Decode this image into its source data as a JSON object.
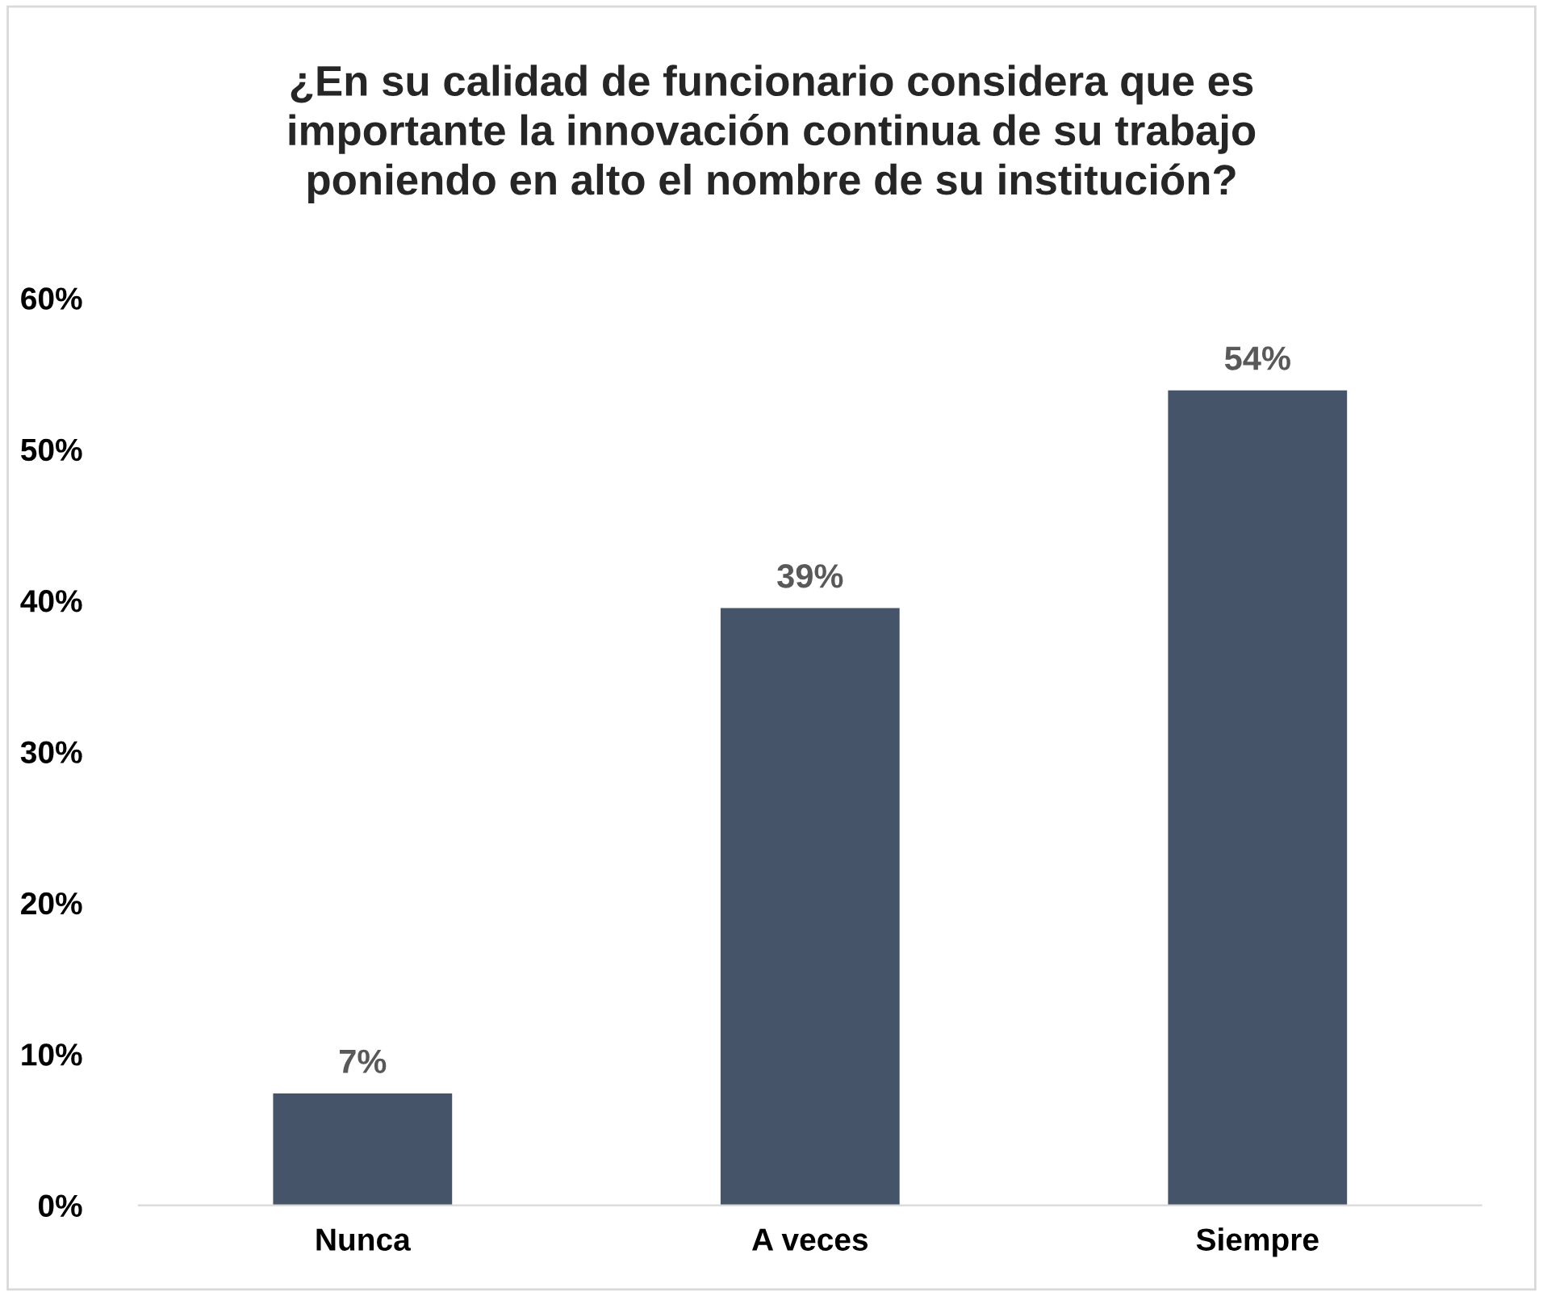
{
  "chart_data": {
    "type": "bar",
    "title": "¿En su calidad de funcionario considera que es\nimportante la innovación continua de su trabajo\nponiendo en alto el nombre de su institución?",
    "categories": [
      "Nunca",
      "A veces",
      "Siempre"
    ],
    "values": [
      7.4,
      39.5,
      53.9
    ],
    "value_labels": [
      "7%",
      "39%",
      "54%"
    ],
    "color": "#465469",
    "ylim": [
      0,
      60
    ],
    "yticks": [
      {
        "value": 0,
        "label": "0%"
      },
      {
        "value": 10,
        "label": "10%"
      },
      {
        "value": 20,
        "label": "20%"
      },
      {
        "value": 30,
        "label": "30%"
      },
      {
        "value": 40,
        "label": "40%"
      },
      {
        "value": 50,
        "label": "50%"
      },
      {
        "value": 60,
        "label": "60%"
      }
    ],
    "grid": false,
    "legend": false
  }
}
